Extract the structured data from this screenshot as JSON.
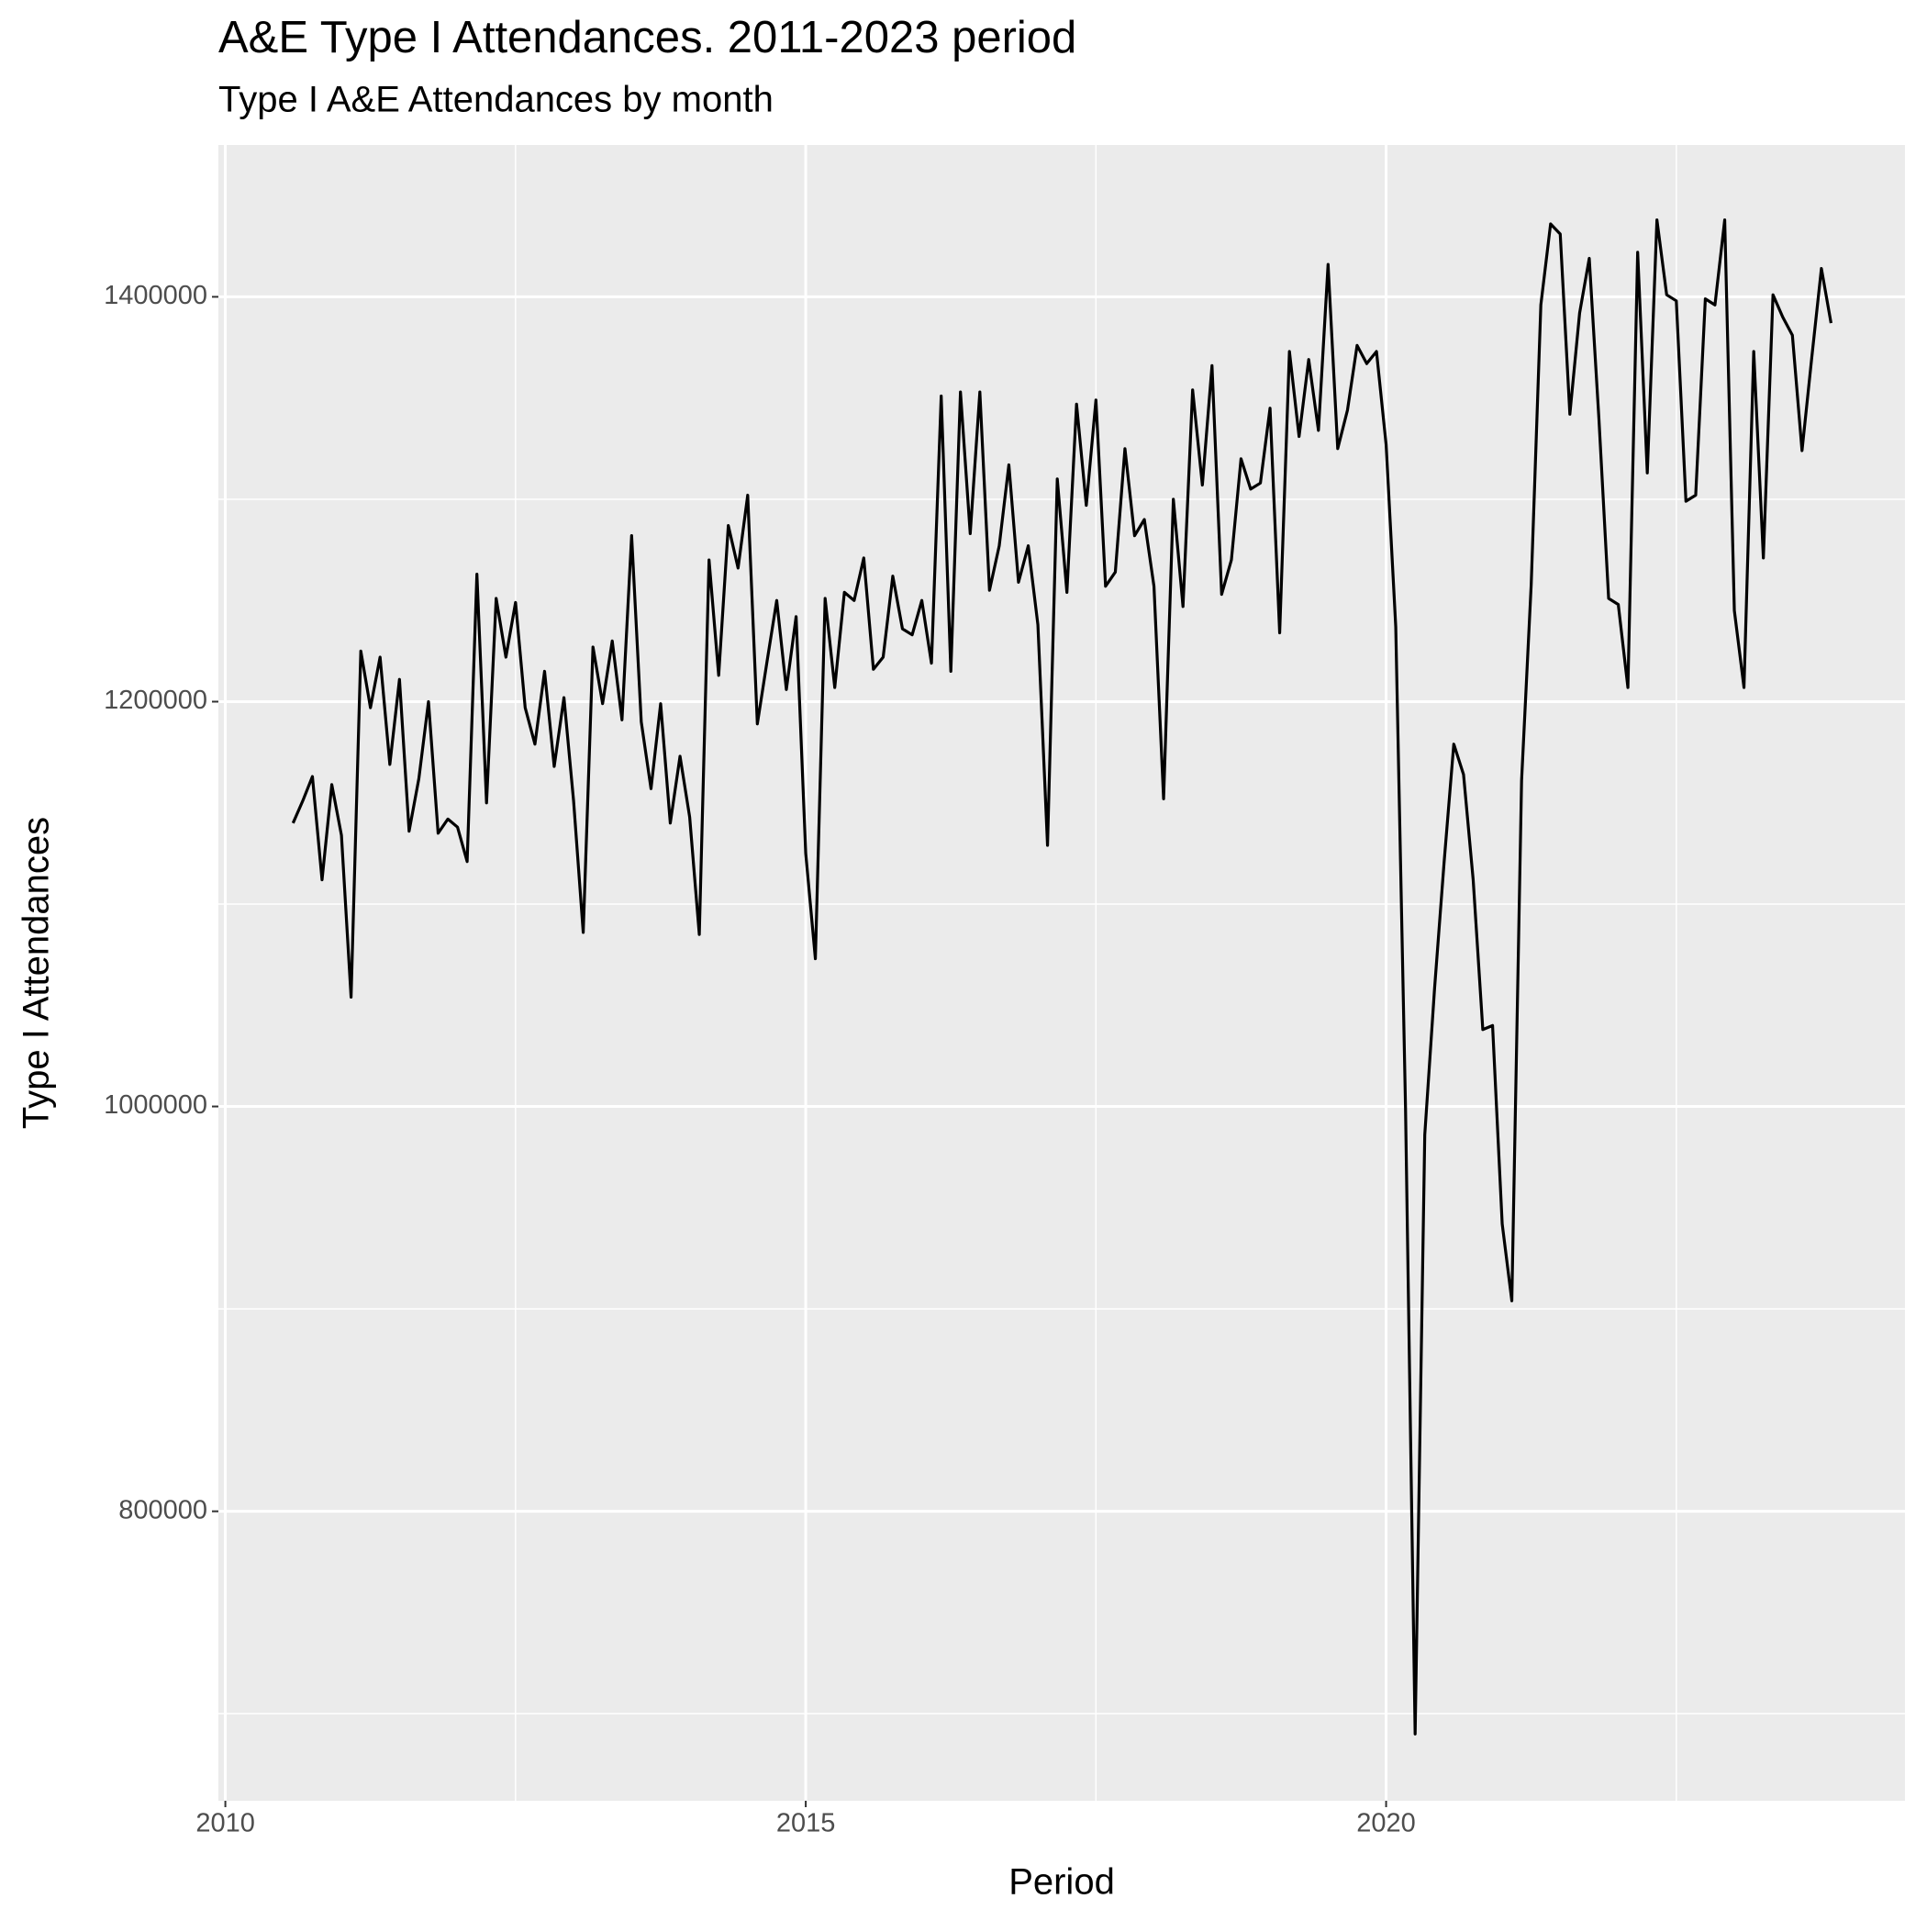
{
  "chart_data": {
    "type": "line",
    "title": "A&E Type I Attendances. 2011-2023 period",
    "subtitle": "Type I A&E Attendances by month",
    "x_label": "Period",
    "y_label": "Type I Attendances",
    "xlim": [
      2009.94,
      2024.47
    ],
    "ylim": [
      657000,
      1475000
    ],
    "xticks": [
      2010,
      2015,
      2020
    ],
    "yticks": [
      800000,
      1000000,
      1200000,
      1400000
    ],
    "x_minor_ticks": [
      2012.5,
      2017.5,
      2022.5
    ],
    "y_minor_ticks": [
      700000,
      900000,
      1100000,
      1300000
    ],
    "grid": true,
    "panel_color": "#ebebeb",
    "series": [
      {
        "color": "#000000",
        "x": [
          2010.583,
          2010.667,
          2010.75,
          2010.833,
          2010.917,
          2011,
          2011.083,
          2011.167,
          2011.25,
          2011.333,
          2011.417,
          2011.5,
          2011.583,
          2011.667,
          2011.75,
          2011.833,
          2011.917,
          2012,
          2012.083,
          2012.167,
          2012.25,
          2012.333,
          2012.417,
          2012.5,
          2012.583,
          2012.667,
          2012.75,
          2012.833,
          2012.917,
          2013,
          2013.083,
          2013.167,
          2013.25,
          2013.333,
          2013.417,
          2013.5,
          2013.583,
          2013.667,
          2013.75,
          2013.833,
          2013.917,
          2014,
          2014.083,
          2014.167,
          2014.25,
          2014.333,
          2014.417,
          2014.5,
          2014.583,
          2014.667,
          2014.75,
          2014.833,
          2014.917,
          2015,
          2015.083,
          2015.167,
          2015.25,
          2015.333,
          2015.417,
          2015.5,
          2015.583,
          2015.667,
          2015.75,
          2015.833,
          2015.917,
          2016,
          2016.083,
          2016.167,
          2016.25,
          2016.333,
          2016.417,
          2016.5,
          2016.583,
          2016.667,
          2016.75,
          2016.833,
          2016.917,
          2017,
          2017.083,
          2017.167,
          2017.25,
          2017.333,
          2017.417,
          2017.5,
          2017.583,
          2017.667,
          2017.75,
          2017.833,
          2017.917,
          2018,
          2018.083,
          2018.167,
          2018.25,
          2018.333,
          2018.417,
          2018.5,
          2018.583,
          2018.667,
          2018.75,
          2018.833,
          2018.917,
          2019,
          2019.083,
          2019.167,
          2019.25,
          2019.333,
          2019.417,
          2019.5,
          2019.583,
          2019.667,
          2019.75,
          2019.833,
          2019.917,
          2020,
          2020.083,
          2020.167,
          2020.25,
          2020.333,
          2020.417,
          2020.5,
          2020.583,
          2020.667,
          2020.75,
          2020.833,
          2020.917,
          2021,
          2021.083,
          2021.167,
          2021.25,
          2021.333,
          2021.417,
          2021.5,
          2021.583,
          2021.667,
          2021.75,
          2021.833,
          2021.917,
          2022,
          2022.083,
          2022.167,
          2022.25,
          2022.333,
          2022.417,
          2022.5,
          2022.583,
          2022.667,
          2022.75,
          2022.833,
          2022.917,
          2023,
          2023.083,
          2023.167,
          2023.25,
          2023.333,
          2023.417,
          2023.5,
          2023.583,
          2023.667,
          2023.75,
          2023.833
        ],
        "values": [
          1140000,
          1151000,
          1163000,
          1112000,
          1159000,
          1134000,
          1054000,
          1225000,
          1197000,
          1222000,
          1169000,
          1211000,
          1136000,
          1162000,
          1200000,
          1135000,
          1142000,
          1138000,
          1121000,
          1263000,
          1150000,
          1251000,
          1222000,
          1249000,
          1197000,
          1179000,
          1215000,
          1168000,
          1202000,
          1151000,
          1086000,
          1227000,
          1199000,
          1230000,
          1191000,
          1282000,
          1190000,
          1157000,
          1199000,
          1140000,
          1173000,
          1143000,
          1085000,
          1270000,
          1213000,
          1287000,
          1266000,
          1302000,
          1189000,
          1220000,
          1250000,
          1206000,
          1242000,
          1125000,
          1073000,
          1251000,
          1207000,
          1254000,
          1250000,
          1271000,
          1216000,
          1222000,
          1262000,
          1236000,
          1233000,
          1250000,
          1219000,
          1351000,
          1215000,
          1353000,
          1283000,
          1353000,
          1255000,
          1277000,
          1317000,
          1259000,
          1277000,
          1238000,
          1129000,
          1310000,
          1254000,
          1347000,
          1297000,
          1349000,
          1257000,
          1264000,
          1325000,
          1282000,
          1290000,
          1257000,
          1152000,
          1300000,
          1247000,
          1354000,
          1307000,
          1366000,
          1253000,
          1270000,
          1320000,
          1305000,
          1308000,
          1345000,
          1234000,
          1373000,
          1331000,
          1369000,
          1334000,
          1416000,
          1325000,
          1344000,
          1376000,
          1367000,
          1373000,
          1327000,
          1237000,
          1000000,
          690000,
          986000,
          1058000,
          1121000,
          1179000,
          1164000,
          1112000,
          1038000,
          1040000,
          942000,
          904000,
          1161000,
          1258000,
          1396000,
          1436000,
          1431000,
          1342000,
          1392000,
          1419000,
          1340000,
          1251000,
          1248000,
          1207000,
          1422000,
          1313000,
          1438000,
          1401000,
          1398000,
          1299000,
          1302000,
          1399000,
          1396000,
          1438000,
          1245000,
          1207000,
          1373000,
          1271000,
          1401000,
          1390000,
          1381000,
          1324000,
          1370000,
          1414000,
          1387000
        ]
      }
    ]
  }
}
